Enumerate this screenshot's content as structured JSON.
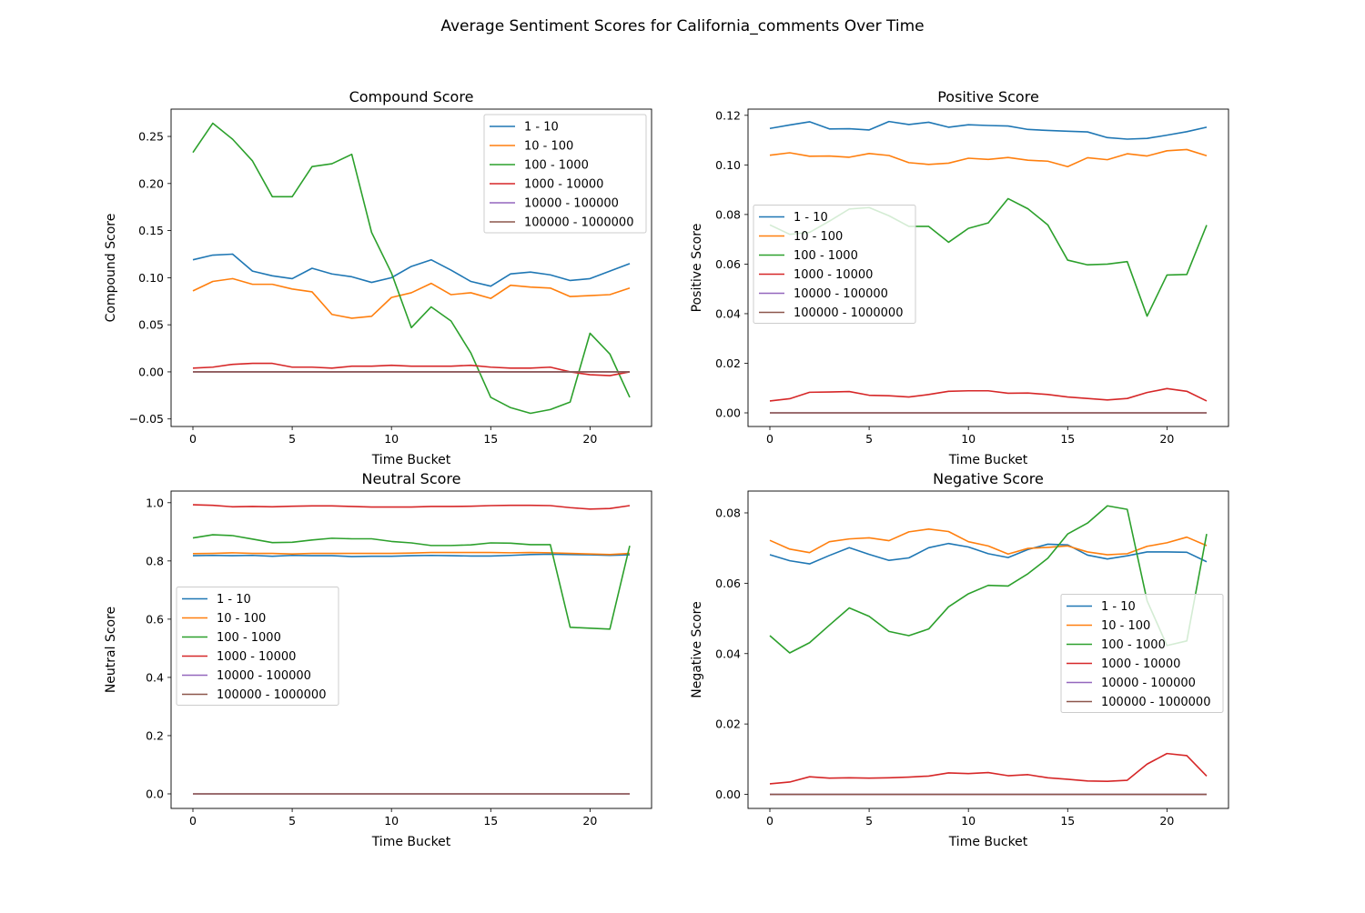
{
  "figure": {
    "suptitle": "Average Sentiment Scores for California_comments Over Time"
  },
  "chart_data": [
    {
      "type": "line",
      "title": "Compound Score",
      "xlabel": "Time Bucket",
      "ylabel": "Compound Score",
      "xlim": [
        -1.1,
        23.1
      ],
      "ylim": [
        -0.058,
        0.279
      ],
      "xticks": [
        0,
        5,
        10,
        15,
        20
      ],
      "xtick_labels": [
        "0",
        "5",
        "10",
        "15",
        "20"
      ],
      "yticks": [
        -0.05,
        0,
        0.05,
        0.1,
        0.15,
        0.2,
        0.25
      ],
      "ytick_labels": [
        "−0.05",
        "0.00",
        "0.05",
        "0.10",
        "0.15",
        "0.20",
        "0.25"
      ],
      "legend": "upper right",
      "x": [
        0,
        1,
        2,
        3,
        4,
        5,
        6,
        7,
        8,
        9,
        10,
        11,
        12,
        13,
        14,
        15,
        16,
        17,
        18,
        19,
        20,
        21,
        22
      ],
      "series": [
        {
          "name": "1 - 10",
          "color": "#1f77b4",
          "values": [
            0.119,
            0.124,
            0.125,
            0.107,
            0.102,
            0.099,
            0.11,
            0.104,
            0.101,
            0.095,
            0.1,
            0.112,
            0.119,
            0.108,
            0.096,
            0.091,
            0.104,
            0.106,
            0.103,
            0.097,
            0.099,
            0.107,
            0.115
          ]
        },
        {
          "name": "10 - 100",
          "color": "#ff7f0e",
          "values": [
            0.086,
            0.096,
            0.099,
            0.093,
            0.093,
            0.088,
            0.085,
            0.061,
            0.057,
            0.059,
            0.079,
            0.084,
            0.094,
            0.082,
            0.084,
            0.078,
            0.092,
            0.09,
            0.089,
            0.08,
            0.081,
            0.082,
            0.089
          ]
        },
        {
          "name": "100 - 1000",
          "color": "#2ca02c",
          "values": [
            0.233,
            0.264,
            0.247,
            0.224,
            0.186,
            0.186,
            0.218,
            0.221,
            0.231,
            0.148,
            0.105,
            0.047,
            0.069,
            0.054,
            0.02,
            -0.027,
            -0.038,
            -0.044,
            -0.04,
            -0.032,
            0.041,
            0.019,
            -0.027
          ]
        },
        {
          "name": "1000 - 10000",
          "color": "#d62728",
          "values": [
            0.004,
            0.005,
            0.008,
            0.009,
            0.009,
            0.005,
            0.005,
            0.004,
            0.006,
            0.006,
            0.007,
            0.006,
            0.006,
            0.006,
            0.007,
            0.005,
            0.004,
            0.004,
            0.005,
            0.0,
            -0.003,
            -0.004,
            -0.0
          ]
        },
        {
          "name": "10000 - 100000",
          "color": "#9467bd",
          "values": [
            0,
            0,
            0,
            0,
            0,
            0,
            0,
            0,
            0,
            0,
            0,
            0,
            0,
            0,
            0,
            0,
            0,
            0,
            0,
            0,
            0,
            0,
            0
          ]
        },
        {
          "name": "100000 - 1000000",
          "color": "#8c564b",
          "values": [
            0,
            0,
            0,
            0,
            0,
            0,
            0,
            0,
            0,
            0,
            0,
            0,
            0,
            0,
            0,
            0,
            0,
            0,
            0,
            0,
            0,
            0,
            0
          ]
        }
      ]
    },
    {
      "type": "line",
      "title": "Positive Score",
      "xlabel": "Time Bucket",
      "ylabel": "Positive Score",
      "xlim": [
        -1.1,
        23.1
      ],
      "ylim": [
        -0.0055,
        0.1225
      ],
      "xticks": [
        0,
        5,
        10,
        15,
        20
      ],
      "xtick_labels": [
        "0",
        "5",
        "10",
        "15",
        "20"
      ],
      "yticks": [
        0,
        0.02,
        0.04,
        0.06,
        0.08,
        0.1,
        0.12
      ],
      "ytick_labels": [
        "0.00",
        "0.02",
        "0.04",
        "0.06",
        "0.08",
        "0.10",
        "0.12"
      ],
      "legend": "center left",
      "x": [
        0,
        1,
        2,
        3,
        4,
        5,
        6,
        7,
        8,
        9,
        10,
        11,
        12,
        13,
        14,
        15,
        16,
        17,
        18,
        19,
        20,
        21,
        22
      ],
      "series": [
        {
          "name": "1 - 10",
          "color": "#1f77b4",
          "values": [
            0.1147,
            0.1161,
            0.1174,
            0.1145,
            0.1146,
            0.1141,
            0.1175,
            0.1163,
            0.1172,
            0.1152,
            0.1162,
            0.1159,
            0.1157,
            0.1143,
            0.1139,
            0.1136,
            0.1133,
            0.111,
            0.1104,
            0.1107,
            0.112,
            0.1134,
            0.1152
          ]
        },
        {
          "name": "10 - 100",
          "color": "#ff7f0e",
          "values": [
            0.1039,
            0.1049,
            0.1035,
            0.1036,
            0.1031,
            0.1046,
            0.1038,
            0.1009,
            0.1002,
            0.1007,
            0.1027,
            0.1022,
            0.103,
            0.1019,
            0.1015,
            0.0993,
            0.1029,
            0.1021,
            0.1045,
            0.1036,
            0.1057,
            0.1062,
            0.1037
          ]
        },
        {
          "name": "100 - 1000",
          "color": "#2ca02c",
          "values": [
            0.0758,
            0.072,
            0.0728,
            0.0773,
            0.0822,
            0.0828,
            0.0795,
            0.0752,
            0.0752,
            0.0688,
            0.0744,
            0.0766,
            0.0864,
            0.0823,
            0.0758,
            0.0616,
            0.0597,
            0.06,
            0.061,
            0.039,
            0.0556,
            0.0558,
            0.0757
          ]
        },
        {
          "name": "1000 - 10000",
          "color": "#d62728",
          "values": [
            0.0048,
            0.0057,
            0.0083,
            0.0084,
            0.0086,
            0.0071,
            0.0069,
            0.0064,
            0.0074,
            0.0087,
            0.0089,
            0.0089,
            0.0079,
            0.008,
            0.0074,
            0.0064,
            0.0058,
            0.0052,
            0.0058,
            0.0082,
            0.0098,
            0.0087,
            0.0048
          ]
        },
        {
          "name": "10000 - 100000",
          "color": "#9467bd",
          "values": [
            0,
            0,
            0,
            0,
            0,
            0,
            0,
            0,
            0,
            0,
            0,
            0,
            0,
            0,
            0,
            0,
            0,
            0,
            0,
            0,
            0,
            0,
            0
          ]
        },
        {
          "name": "100000 - 1000000",
          "color": "#8c564b",
          "values": [
            0,
            0,
            0,
            0,
            0,
            0,
            0,
            0,
            0,
            0,
            0,
            0,
            0,
            0,
            0,
            0,
            0,
            0,
            0,
            0,
            0,
            0,
            0
          ]
        }
      ]
    },
    {
      "type": "line",
      "title": "Neutral Score",
      "xlabel": "Time Bucket",
      "ylabel": "Neutral Score",
      "xlim": [
        -1.1,
        23.1
      ],
      "ylim": [
        -0.05,
        1.04
      ],
      "xticks": [
        0,
        5,
        10,
        15,
        20
      ],
      "xtick_labels": [
        "0",
        "5",
        "10",
        "15",
        "20"
      ],
      "yticks": [
        0,
        0.2,
        0.4,
        0.6,
        0.8,
        1.0
      ],
      "ytick_labels": [
        "0.0",
        "0.2",
        "0.4",
        "0.6",
        "0.8",
        "1.0"
      ],
      "legend": "center left",
      "x": [
        0,
        1,
        2,
        3,
        4,
        5,
        6,
        7,
        8,
        9,
        10,
        11,
        12,
        13,
        14,
        15,
        16,
        17,
        18,
        19,
        20,
        21,
        22
      ],
      "series": [
        {
          "name": "1 - 10",
          "color": "#1f77b4",
          "values": [
            0.818,
            0.819,
            0.818,
            0.819,
            0.816,
            0.819,
            0.818,
            0.818,
            0.815,
            0.816,
            0.816,
            0.818,
            0.819,
            0.818,
            0.817,
            0.817,
            0.819,
            0.822,
            0.823,
            0.822,
            0.821,
            0.819,
            0.821
          ]
        },
        {
          "name": "10 - 100",
          "color": "#ff7f0e",
          "values": [
            0.825,
            0.826,
            0.828,
            0.826,
            0.826,
            0.824,
            0.826,
            0.826,
            0.826,
            0.826,
            0.826,
            0.827,
            0.829,
            0.829,
            0.829,
            0.829,
            0.828,
            0.829,
            0.828,
            0.826,
            0.824,
            0.822,
            0.826
          ]
        },
        {
          "name": "100 - 1000",
          "color": "#2ca02c",
          "values": [
            0.879,
            0.89,
            0.887,
            0.875,
            0.863,
            0.864,
            0.872,
            0.878,
            0.876,
            0.876,
            0.867,
            0.862,
            0.853,
            0.853,
            0.855,
            0.862,
            0.861,
            0.856,
            0.856,
            0.572,
            0.569,
            0.566,
            0.852
          ]
        },
        {
          "name": "1000 - 10000",
          "color": "#d62728",
          "values": [
            0.993,
            0.991,
            0.986,
            0.987,
            0.986,
            0.988,
            0.989,
            0.989,
            0.987,
            0.985,
            0.985,
            0.985,
            0.987,
            0.987,
            0.988,
            0.99,
            0.991,
            0.991,
            0.99,
            0.983,
            0.978,
            0.98,
            0.99
          ]
        },
        {
          "name": "10000 - 100000",
          "color": "#9467bd",
          "values": [
            0,
            0,
            0,
            0,
            0,
            0,
            0,
            0,
            0,
            0,
            0,
            0,
            0,
            0,
            0,
            0,
            0,
            0,
            0,
            0,
            0,
            0,
            0
          ]
        },
        {
          "name": "100000 - 1000000",
          "color": "#8c564b",
          "values": [
            0,
            0,
            0,
            0,
            0,
            0,
            0,
            0,
            0,
            0,
            0,
            0,
            0,
            0,
            0,
            0,
            0,
            0,
            0,
            0,
            0,
            0,
            0
          ]
        }
      ]
    },
    {
      "type": "line",
      "title": "Negative Score",
      "xlabel": "Time Bucket",
      "ylabel": "Negative Score",
      "xlim": [
        -1.1,
        23.1
      ],
      "ylim": [
        -0.004,
        0.0862
      ],
      "xticks": [
        0,
        5,
        10,
        15,
        20
      ],
      "xtick_labels": [
        "0",
        "5",
        "10",
        "15",
        "20"
      ],
      "yticks": [
        0,
        0.02,
        0.04,
        0.06,
        0.08
      ],
      "ytick_labels": [
        "0.00",
        "0.02",
        "0.04",
        "0.06",
        "0.08"
      ],
      "legend": "center right",
      "x": [
        0,
        1,
        2,
        3,
        4,
        5,
        6,
        7,
        8,
        9,
        10,
        11,
        12,
        13,
        14,
        15,
        16,
        17,
        18,
        19,
        20,
        21,
        22
      ],
      "series": [
        {
          "name": "1 - 10",
          "color": "#1f77b4",
          "values": [
            0.0681,
            0.0664,
            0.0655,
            0.0679,
            0.0701,
            0.0682,
            0.0665,
            0.0672,
            0.0701,
            0.0713,
            0.0703,
            0.0684,
            0.0673,
            0.0696,
            0.0711,
            0.0709,
            0.068,
            0.0669,
            0.0678,
            0.0689,
            0.0689,
            0.0688,
            0.0661
          ]
        },
        {
          "name": "10 - 100",
          "color": "#ff7f0e",
          "values": [
            0.0722,
            0.0697,
            0.0687,
            0.0718,
            0.0726,
            0.0729,
            0.0721,
            0.0746,
            0.0754,
            0.0747,
            0.0718,
            0.0706,
            0.0683,
            0.0699,
            0.0702,
            0.0706,
            0.0689,
            0.0681,
            0.0684,
            0.0705,
            0.0715,
            0.0731,
            0.0707
          ]
        },
        {
          "name": "100 - 1000",
          "color": "#2ca02c",
          "values": [
            0.0451,
            0.0402,
            0.0431,
            0.0481,
            0.053,
            0.0506,
            0.0463,
            0.0451,
            0.047,
            0.0533,
            0.057,
            0.0594,
            0.0592,
            0.0627,
            0.0671,
            0.074,
            0.0771,
            0.082,
            0.081,
            0.055,
            0.0423,
            0.0436,
            0.074
          ]
        },
        {
          "name": "1000 - 10000",
          "color": "#d62728",
          "values": [
            0.003,
            0.0035,
            0.005,
            0.0046,
            0.0047,
            0.0046,
            0.0047,
            0.0049,
            0.0052,
            0.0061,
            0.0059,
            0.0062,
            0.0053,
            0.0056,
            0.0047,
            0.0043,
            0.0038,
            0.0037,
            0.004,
            0.0086,
            0.0116,
            0.011,
            0.0052
          ]
        },
        {
          "name": "10000 - 100000",
          "color": "#9467bd",
          "values": [
            0,
            0,
            0,
            0,
            0,
            0,
            0,
            0,
            0,
            0,
            0,
            0,
            0,
            0,
            0,
            0,
            0,
            0,
            0,
            0,
            0,
            0,
            0
          ]
        },
        {
          "name": "100000 - 1000000",
          "color": "#8c564b",
          "values": [
            0,
            0,
            0,
            0,
            0,
            0,
            0,
            0,
            0,
            0,
            0,
            0,
            0,
            0,
            0,
            0,
            0,
            0,
            0,
            0,
            0,
            0,
            0
          ]
        }
      ]
    }
  ]
}
